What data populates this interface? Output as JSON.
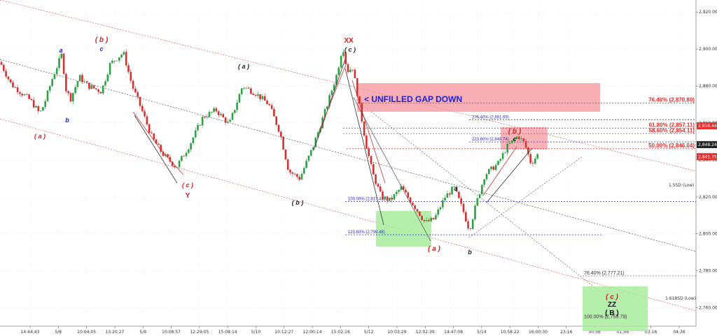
{
  "chart_data": {
    "type": "candlestick",
    "title": "",
    "xlabel": "",
    "ylabel": "",
    "ylim": [
      2750,
      2925
    ],
    "y_ticks": [
      "2,760.00",
      "2,780.00",
      "2,800.00",
      "2,820.00",
      "2,840.00",
      "2,860.00",
      "2,880.00",
      "2,900.00",
      "2,920.00"
    ],
    "x_ticks": [
      "14:44:43",
      "5/8",
      "10:04:05",
      "13:20:27",
      "5/9",
      "10:08:57",
      "12:29:05",
      "15:08:14",
      "5/10",
      "10:12:27",
      "12:00:14",
      "15:02:16",
      "5/12",
      "10:03:29",
      "12:02:39",
      "14:47:08",
      "5/14",
      "10:58:22",
      "16:00:30",
      "23:16",
      "00:36",
      "01:56",
      "03:16",
      "04:36"
    ],
    "price_path": [
      [
        0,
        2893
      ],
      [
        0.5,
        2881
      ],
      [
        1.0,
        2876
      ],
      [
        1.4,
        2872
      ],
      [
        1.8,
        2865
      ],
      [
        2.0,
        2870
      ],
      [
        2.4,
        2885
      ],
      [
        2.8,
        2897
      ],
      [
        3.0,
        2878
      ],
      [
        3.2,
        2873
      ],
      [
        3.6,
        2885
      ],
      [
        4.0,
        2880
      ],
      [
        4.6,
        2877
      ],
      [
        5.0,
        2892
      ],
      [
        5.6,
        2898
      ],
      [
        6.0,
        2880
      ],
      [
        6.4,
        2868
      ],
      [
        6.9,
        2852
      ],
      [
        7.4,
        2843
      ],
      [
        8.0,
        2836
      ],
      [
        8.6,
        2848
      ],
      [
        9.2,
        2863
      ],
      [
        9.8,
        2867
      ],
      [
        10.4,
        2859
      ],
      [
        11.0,
        2880
      ],
      [
        11.6,
        2876
      ],
      [
        12.2,
        2870
      ],
      [
        12.7,
        2855
      ],
      [
        13.1,
        2834
      ],
      [
        13.6,
        2830
      ],
      [
        14.2,
        2847
      ],
      [
        14.8,
        2868
      ],
      [
        15.3,
        2887
      ],
      [
        15.55,
        2902
      ],
      [
        15.75,
        2888
      ],
      [
        16.0,
        2890
      ],
      [
        16.3,
        2870
      ],
      [
        16.6,
        2849
      ],
      [
        16.9,
        2833
      ],
      [
        17.3,
        2820
      ],
      [
        17.7,
        2818
      ],
      [
        18.2,
        2825
      ],
      [
        18.8,
        2815
      ],
      [
        19.3,
        2806
      ],
      [
        19.7,
        2808
      ],
      [
        20.2,
        2820
      ],
      [
        20.6,
        2825
      ],
      [
        21.0,
        2813
      ],
      [
        21.3,
        2802
      ],
      [
        21.6,
        2816
      ],
      [
        22.0,
        2832
      ],
      [
        22.6,
        2838
      ],
      [
        23.0,
        2847
      ],
      [
        23.5,
        2853
      ],
      [
        23.8,
        2849
      ],
      [
        24.1,
        2838
      ],
      [
        24.4,
        2843
      ]
    ],
    "series": [
      {
        "name": "",
        "kind": "fibonacci-levels",
        "values": [
          {
            "label": "76.40% (2,870.80)",
            "y": 2870.8,
            "color": "#e52b2b"
          },
          {
            "label": "61.80% (2,857.11)",
            "y": 2857.11,
            "color": "#e52b2b"
          },
          {
            "label": "58.60% (2,854.11)",
            "y": 2854.11,
            "color": "#e52b2b"
          },
          {
            "label": "50.00% (2,846.04)",
            "y": 2846.04,
            "color": "#e52b2b"
          },
          {
            "label": "276.40% (2,861.69)",
            "y": 2861.69,
            "color": "#2b2bd8"
          },
          {
            "label": "223.60% (2,849.74)",
            "y": 2849.74,
            "color": "#2b2bd8"
          },
          {
            "label": "100.00% (2,817.43)",
            "y": 2817.43,
            "color": "#2b2bd8"
          },
          {
            "label": "123.60% (2,799.48)",
            "y": 2799.48,
            "color": "#2b2bd8"
          },
          {
            "label": "76.40% (2,777.21)",
            "y": 2777.21,
            "color": "#333333"
          },
          {
            "label": "100.00% (2,755.79)",
            "y": 2755.79,
            "color": "#333333"
          }
        ]
      }
    ],
    "price_badges": [
      {
        "label": "2,858.44",
        "y": 2858.44,
        "color": "#e53030"
      },
      {
        "label": "2,848.24",
        "y": 2848.24,
        "color": "#222222"
      },
      {
        "label": "2,841.75",
        "y": 2841.75,
        "color": "#e53030"
      }
    ],
    "zones": [
      {
        "label": "< UNFILLED GAP DOWN",
        "kind": "gap"
      },
      {
        "label": "",
        "kind": "b-target"
      },
      {
        "label": "",
        "kind": "a-support"
      },
      {
        "label": "",
        "kind": "c-target"
      }
    ],
    "channel_labels": [
      "1.5SD (Low)",
      "1.618SD (Low)"
    ],
    "wave_labels": [
      {
        "text": "a",
        "color": "#2222cc"
      },
      {
        "text": "( b )",
        "color": "#d42020"
      },
      {
        "text": "c",
        "color": "#2222cc"
      },
      {
        "text": "b",
        "color": "#2222cc"
      },
      {
        "text": "( a )",
        "color": "#d42020"
      },
      {
        "text": "( c )",
        "color": "#d42020"
      },
      {
        "text": "Y",
        "color": "#d42020"
      },
      {
        "text": "( a )",
        "color": "#222222"
      },
      {
        "text": "( b )",
        "color": "#222222"
      },
      {
        "text": "XX",
        "color": "#d42020"
      },
      {
        "text": "( c )",
        "color": "#222222"
      },
      {
        "text": "a",
        "color": "#222222"
      },
      {
        "text": "( a )",
        "color": "#d42020"
      },
      {
        "text": "b",
        "color": "#222222"
      },
      {
        "text": "( b )",
        "color": "#d42020"
      },
      {
        "text": "c",
        "color": "#222222"
      },
      {
        "text": "( c )",
        "color": "#d42020"
      },
      {
        "text": "ZZ",
        "color": "#111111"
      },
      {
        "text": "( B )",
        "color": "#111111"
      }
    ],
    "grid": true,
    "legend": "none"
  }
}
